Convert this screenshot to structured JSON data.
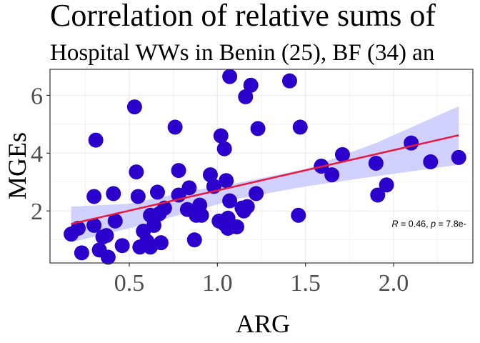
{
  "chart_data": {
    "type": "scatter",
    "title": "Correlation of relative sums of",
    "subtitle": "Hospital WWs in Benin (25), BF (34) an",
    "xlabel": "ARG",
    "ylabel": "MGEs",
    "xlim": [
      0.05,
      2.45
    ],
    "ylim": [
      0.2,
      6.9
    ],
    "x_ticks": [
      0.5,
      1.0,
      1.5,
      2.0
    ],
    "x_tick_labels": [
      "0.5",
      "1.0",
      "1.5",
      "2.0"
    ],
    "y_ticks": [
      2,
      4,
      6
    ],
    "y_tick_labels": [
      "2",
      "4",
      "6"
    ],
    "grid": true,
    "annotation": {
      "r_label": "R",
      "r_text": " = 0.46, ",
      "p_label": "p",
      "p_text": " = 7.8e-",
      "x": 1.99,
      "y": 1.45
    },
    "regression": {
      "x0": 0.17,
      "y0": 1.55,
      "x1": 2.37,
      "y1": 4.62
    },
    "confidence_band": {
      "x": [
        0.17,
        0.5,
        0.9,
        1.1,
        1.5,
        1.9,
        2.37
      ],
      "lower": [
        0.92,
        1.4,
        2.05,
        2.4,
        2.85,
        3.2,
        3.6
      ],
      "upper": [
        2.15,
        2.25,
        2.75,
        2.95,
        3.45,
        4.35,
        5.62
      ]
    },
    "colors": {
      "points": "#2b00cc",
      "line": "#e8193c",
      "band": "#c9c9ff",
      "grid": "#ebebeb",
      "axis_text": "#4d4d4d"
    },
    "points": [
      {
        "x": 0.17,
        "y": 1.2
      },
      {
        "x": 0.21,
        "y": 1.4
      },
      {
        "x": 0.23,
        "y": 0.55
      },
      {
        "x": 0.3,
        "y": 2.5
      },
      {
        "x": 0.3,
        "y": 1.5
      },
      {
        "x": 0.31,
        "y": 4.45
      },
      {
        "x": 0.33,
        "y": 0.65
      },
      {
        "x": 0.35,
        "y": 1.1
      },
      {
        "x": 0.37,
        "y": 1.15
      },
      {
        "x": 0.38,
        "y": 0.4
      },
      {
        "x": 0.41,
        "y": 2.6
      },
      {
        "x": 0.42,
        "y": 1.65
      },
      {
        "x": 0.46,
        "y": 0.8
      },
      {
        "x": 0.53,
        "y": 5.6
      },
      {
        "x": 0.54,
        "y": 3.35
      },
      {
        "x": 0.55,
        "y": 2.5
      },
      {
        "x": 0.56,
        "y": 0.75
      },
      {
        "x": 0.58,
        "y": 1.3
      },
      {
        "x": 0.6,
        "y": 0.95
      },
      {
        "x": 0.62,
        "y": 1.85
      },
      {
        "x": 0.62,
        "y": 0.75
      },
      {
        "x": 0.64,
        "y": 1.5
      },
      {
        "x": 0.66,
        "y": 2.65
      },
      {
        "x": 0.67,
        "y": 1.9
      },
      {
        "x": 0.68,
        "y": 0.9
      },
      {
        "x": 0.7,
        "y": 2.1
      },
      {
        "x": 0.76,
        "y": 4.9
      },
      {
        "x": 0.78,
        "y": 3.4
      },
      {
        "x": 0.78,
        "y": 2.55
      },
      {
        "x": 0.83,
        "y": 2.05
      },
      {
        "x": 0.84,
        "y": 2.8
      },
      {
        "x": 0.87,
        "y": 1.0
      },
      {
        "x": 0.88,
        "y": 1.85
      },
      {
        "x": 0.89,
        "y": 2.0
      },
      {
        "x": 0.9,
        "y": 2.2
      },
      {
        "x": 0.91,
        "y": 1.85
      },
      {
        "x": 0.96,
        "y": 3.25
      },
      {
        "x": 0.98,
        "y": 2.85
      },
      {
        "x": 1.01,
        "y": 1.65
      },
      {
        "x": 1.02,
        "y": 4.6
      },
      {
        "x": 1.04,
        "y": 1.55
      },
      {
        "x": 1.04,
        "y": 4.15
      },
      {
        "x": 1.05,
        "y": 3.05
      },
      {
        "x": 1.06,
        "y": 1.4
      },
      {
        "x": 1.06,
        "y": 1.75
      },
      {
        "x": 1.07,
        "y": 6.65
      },
      {
        "x": 1.07,
        "y": 2.35
      },
      {
        "x": 1.11,
        "y": 1.45
      },
      {
        "x": 1.14,
        "y": 2.1
      },
      {
        "x": 1.15,
        "y": 2.0
      },
      {
        "x": 1.16,
        "y": 5.95
      },
      {
        "x": 1.17,
        "y": 2.15
      },
      {
        "x": 1.19,
        "y": 6.35
      },
      {
        "x": 1.22,
        "y": 2.6
      },
      {
        "x": 1.23,
        "y": 4.85
      },
      {
        "x": 1.41,
        "y": 6.5
      },
      {
        "x": 1.46,
        "y": 1.85
      },
      {
        "x": 1.47,
        "y": 4.9
      },
      {
        "x": 1.59,
        "y": 3.55
      },
      {
        "x": 1.65,
        "y": 3.25
      },
      {
        "x": 1.71,
        "y": 3.95
      },
      {
        "x": 1.9,
        "y": 3.65
      },
      {
        "x": 1.91,
        "y": 2.55
      },
      {
        "x": 1.96,
        "y": 2.9
      },
      {
        "x": 2.1,
        "y": 4.35
      },
      {
        "x": 2.21,
        "y": 3.7
      },
      {
        "x": 2.37,
        "y": 3.85
      }
    ]
  }
}
